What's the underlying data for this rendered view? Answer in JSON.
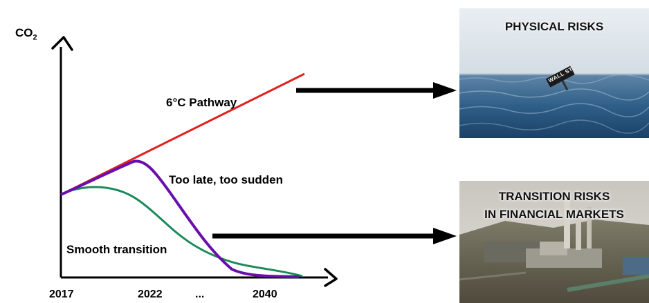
{
  "axis": {
    "y_label": "CO",
    "y_label_subscript": "2",
    "x_ticks": [
      "2017",
      "2022",
      "...",
      "2040"
    ]
  },
  "curves": {
    "pathway_6c": {
      "label": "6°C Pathway",
      "color": "#e02020"
    },
    "too_late": {
      "label": "Too late, too sudden",
      "color": "#6a0dad"
    },
    "smooth": {
      "label": "Smooth transition",
      "color": "#1a8a5a"
    }
  },
  "panels": {
    "physical": {
      "title": "PHYSICAL RISKS",
      "sign_text": "WALL ST"
    },
    "transition": {
      "title_line1": "TRANSITION RISKS",
      "title_line2": "IN FINANCIAL MARKETS"
    }
  },
  "colors": {
    "axis": "#000000",
    "arrow": "#000000"
  }
}
